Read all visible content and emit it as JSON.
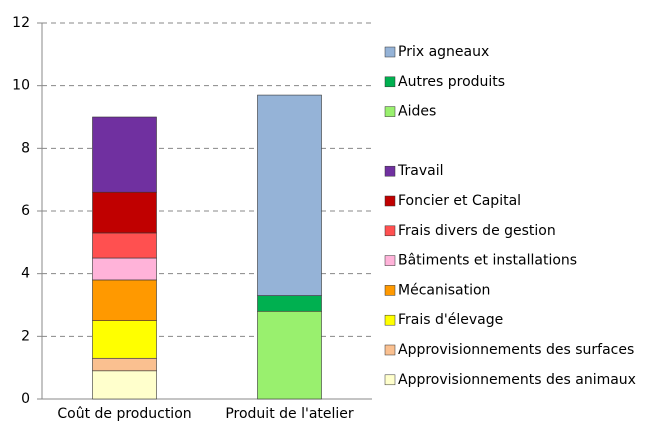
{
  "chart_data": {
    "type": "bar",
    "stacked": true,
    "categories": [
      "Coût de production",
      "Produit de l'atelier"
    ],
    "series": [
      {
        "name": "Approvisionnements des animaux",
        "color": "#ffffcc",
        "values": [
          0.9,
          null
        ]
      },
      {
        "name": "Approvisionnements des surfaces",
        "color": "#fac090",
        "values": [
          0.4,
          null
        ]
      },
      {
        "name": "Frais d'élevage",
        "color": "#ffff00",
        "values": [
          1.2,
          null
        ]
      },
      {
        "name": "Mécanisation",
        "color": "#ff9900",
        "values": [
          1.3,
          null
        ]
      },
      {
        "name": "Bâtiments et installations",
        "color": "#ffb3d9",
        "values": [
          0.7,
          null
        ]
      },
      {
        "name": "Frais divers de gestion",
        "color": "#ff5050",
        "values": [
          0.8,
          null
        ]
      },
      {
        "name": "Foncier et Capital",
        "color": "#c00000",
        "values": [
          1.3,
          null
        ]
      },
      {
        "name": "Travail",
        "color": "#7030a0",
        "values": [
          2.4,
          null
        ]
      },
      {
        "name": "Aides",
        "color": "#99f06e",
        "values": [
          null,
          2.8
        ]
      },
      {
        "name": "Autres produits",
        "color": "#00b050",
        "values": [
          null,
          0.5
        ]
      },
      {
        "name": "Prix agneaux",
        "color": "#95b3d7",
        "values": [
          null,
          6.4
        ]
      }
    ],
    "ylim": [
      0,
      12
    ],
    "yticks": [
      0,
      2,
      4,
      6,
      8,
      10,
      12
    ],
    "grid": true,
    "legend": "right"
  }
}
